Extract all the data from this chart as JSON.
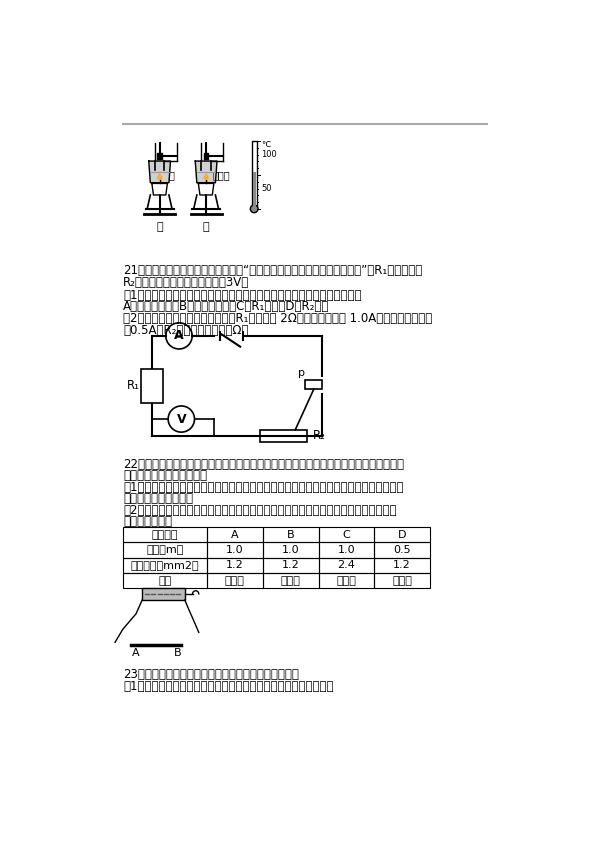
{
  "bg_color": "#ffffff",
  "text_color": "#000000",
  "q21_line1": "21．小英同学用如图所示的电路探究“通过导体的电流与电压、电阻的关系”，R₁为电阻筱，",
  "q21_line2": "R₂为滑动变阻器，电源电压恒为3V。",
  "q21_sub1": "（1）闭合开关后，电流表无示数，但电压表有示数，原因可能是　　　　．",
  "q21_opt": "A．电流表断路　B．电压表断路　C．R₁断路　D．R₂断路",
  "q21_sub2a": "（2）探究电流与电阻的关系时，当R₁的阻値是 2Ω，电流表示数是 1.0A，要使电流表示数",
  "q21_sub2b": "为0.5A，R₂的阻値是　　　　Ω。",
  "q22_line1": "22．在探究导体电阻大小与哪些因素有关的实验中，罗辉所在的实验小组在实验中所用的",
  "q22_line2": "导体相关物理量记录如图：",
  "q22_sub1a": "（1）要探究导体电阻大小与长度是否有关，应选用　　　　　两根导体；这种研究物理问",
  "q22_sub1b": "题的方法叫　　　　．",
  "q22_sub2a": "（2）由电路图可知，该罗辉同学是通过观察小灯泡亮度来判断电阻的大小的，这种方法",
  "q22_sub2b": "叫　　　　　．",
  "table_headers": [
    "导体编号",
    "A",
    "B",
    "C",
    "D"
  ],
  "table_row1": [
    "长度（m）",
    "1.0",
    "1.0",
    "1.0",
    "0.5"
  ],
  "table_row2": [
    "横截面积（mm2）",
    "1.2",
    "1.2",
    "2.4",
    "1.2"
  ],
  "table_row3": [
    "材料",
    "镳鍴丝",
    "锶铜丝",
    "镳鍴丝",
    "镳鍴丝"
  ],
  "q23_line1": "23．某同学用如图甲所示的实验装置测小灯泡的电阻：",
  "q23_sub1": "（1）请你帮他用笔画线代替导线连接实物电路，导线不允许交叉。",
  "label_jia": "甲",
  "label_yi": "乙",
  "label_water": "水",
  "label_saltwater": "食盐水",
  "label_celsius": "℃",
  "label_100": "100",
  "label_50": "50",
  "label_A": "A",
  "label_B": "B",
  "label_R1": "R₁",
  "label_R2": "R₂",
  "label_p": "p",
  "label_ammeter": "A",
  "label_voltmeter": "V"
}
